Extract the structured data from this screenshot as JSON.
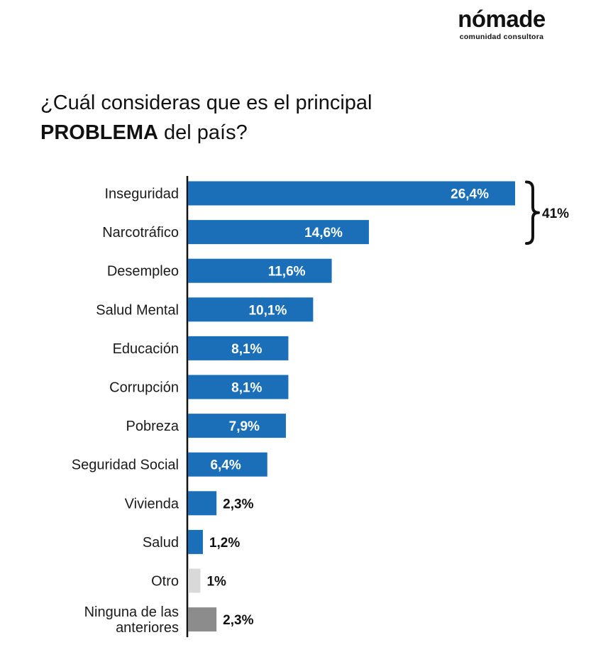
{
  "brand": {
    "name": "nómade",
    "subtitle": "comunidad consultora"
  },
  "title": {
    "line1": "¿Cuál consideras que es el principal",
    "line2_bold": "PROBLEMA",
    "line2_rest": " del país?"
  },
  "chart_data": {
    "type": "bar",
    "orientation": "horizontal",
    "title": "¿Cuál consideras que es el principal PROBLEMA del país?",
    "categories": [
      [
        "Inseguridad"
      ],
      [
        "Narcotráfico"
      ],
      [
        "Desempleo"
      ],
      [
        "Salud Mental"
      ],
      [
        "Educación"
      ],
      [
        "Corrupción"
      ],
      [
        "Pobreza"
      ],
      [
        "Seguridad Social"
      ],
      [
        "Vivienda"
      ],
      [
        "Salud"
      ],
      [
        "Otro"
      ],
      [
        "Ninguna de las",
        "anteriores"
      ]
    ],
    "values": [
      26.4,
      14.6,
      11.6,
      10.1,
      8.1,
      8.1,
      7.9,
      6.4,
      2.3,
      1.2,
      1.0,
      2.3
    ],
    "value_labels": [
      "26,4%",
      "14,6%",
      "11,6%",
      "10,1%",
      "8,1%",
      "8,1%",
      "7,9%",
      "6,4%",
      "2,3%",
      "1,2%",
      "1%",
      "2,3%"
    ],
    "bar_colors": [
      "#1a6fb8",
      "#1a6fb8",
      "#1a6fb8",
      "#1a6fb8",
      "#1a6fb8",
      "#1a6fb8",
      "#1a6fb8",
      "#1a6fb8",
      "#1a6fb8",
      "#1a6fb8",
      "#d9d9d9",
      "#8c8c8c"
    ],
    "unit": "%",
    "grid": false,
    "annotation": {
      "type": "bracket",
      "covers": [
        0,
        1
      ],
      "label": "41%"
    }
  }
}
